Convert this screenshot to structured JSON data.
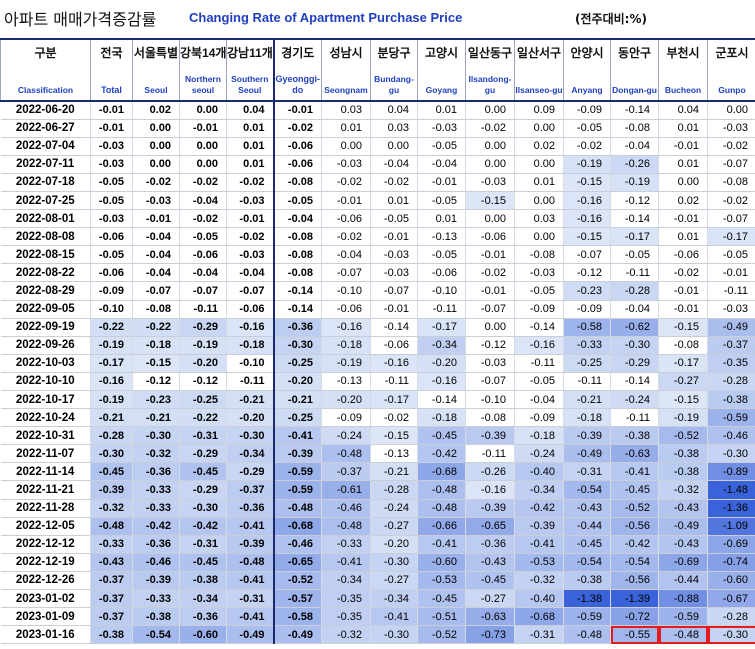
{
  "title": {
    "korean": "아파트 매매가격증감률",
    "english": "Changing Rate of Apartment Purchase Price",
    "unit": "(전주대비:%)"
  },
  "columns": [
    {
      "kr": "구분",
      "en": "Classification"
    },
    {
      "kr": "전국",
      "en": "Total"
    },
    {
      "kr": "서울특별",
      "en": "Seoul"
    },
    {
      "kr": "강북14개",
      "en": "Northern seoul"
    },
    {
      "kr": "강남11개",
      "en": "Southern Seoul"
    },
    {
      "kr": "경기도",
      "en": "Gyeonggi-do"
    },
    {
      "kr": "성남시",
      "en": "Seongnam"
    },
    {
      "kr": "분당구",
      "en": "Bundang-gu"
    },
    {
      "kr": "고양시",
      "en": "Goyang"
    },
    {
      "kr": "일산동구",
      "en": "Ilsandong-gu"
    },
    {
      "kr": "일산서구",
      "en": "Ilsanseo-gu"
    },
    {
      "kr": "안양시",
      "en": "Anyang"
    },
    {
      "kr": "동안구",
      "en": "Dongan-gu"
    },
    {
      "kr": "부천시",
      "en": "Bucheon"
    },
    {
      "kr": "군포시",
      "en": "Gunpo"
    }
  ],
  "rows": [
    {
      "date": "2022-06-20",
      "v": [
        "-0.01",
        "0.02",
        "0.00",
        "0.04",
        "-0.01",
        "0.03",
        "0.04",
        "0.01",
        "0.00",
        "0.09",
        "-0.09",
        "-0.14",
        "0.04",
        "0.00"
      ]
    },
    {
      "date": "2022-06-27",
      "v": [
        "-0.01",
        "0.00",
        "-0.01",
        "0.01",
        "-0.02",
        "0.01",
        "0.03",
        "-0.03",
        "-0.02",
        "0.00",
        "-0.05",
        "-0.08",
        "0.01",
        "-0.03"
      ]
    },
    {
      "date": "2022-07-04",
      "v": [
        "-0.03",
        "0.00",
        "0.00",
        "0.01",
        "-0.06",
        "0.00",
        "0.00",
        "-0.05",
        "0.00",
        "0.02",
        "-0.02",
        "-0.04",
        "-0.01",
        "-0.02"
      ]
    },
    {
      "date": "2022-07-11",
      "v": [
        "-0.03",
        "0.00",
        "0.00",
        "0.01",
        "-0.06",
        "-0.03",
        "-0.04",
        "-0.04",
        "0.00",
        "0.00",
        "-0.19",
        "-0.26",
        "0.01",
        "-0.07"
      ]
    },
    {
      "date": "2022-07-18",
      "v": [
        "-0.05",
        "-0.02",
        "-0.02",
        "-0.02",
        "-0.08",
        "-0.02",
        "-0.02",
        "-0.01",
        "-0.03",
        "0.01",
        "-0.15",
        "-0.19",
        "0.00",
        "-0.08"
      ]
    },
    {
      "date": "2022-07-25",
      "v": [
        "-0.05",
        "-0.03",
        "-0.04",
        "-0.03",
        "-0.05",
        "-0.01",
        "0.01",
        "-0.05",
        "-0.15",
        "0.00",
        "-0.16",
        "-0.12",
        "0.02",
        "-0.02"
      ]
    },
    {
      "date": "2022-08-01",
      "v": [
        "-0.03",
        "-0.01",
        "-0.02",
        "-0.01",
        "-0.04",
        "-0.06",
        "-0.05",
        "0.01",
        "0.00",
        "0.03",
        "-0.16",
        "-0.14",
        "-0.01",
        "-0.07"
      ]
    },
    {
      "date": "2022-08-08",
      "v": [
        "-0.06",
        "-0.04",
        "-0.05",
        "-0.02",
        "-0.08",
        "-0.02",
        "-0.01",
        "-0.13",
        "-0.06",
        "0.00",
        "-0.15",
        "-0.17",
        "0.01",
        "-0.17"
      ]
    },
    {
      "date": "2022-08-15",
      "v": [
        "-0.05",
        "-0.04",
        "-0.06",
        "-0.03",
        "-0.08",
        "-0.04",
        "-0.03",
        "-0.05",
        "-0.01",
        "-0.08",
        "-0.07",
        "-0.05",
        "-0.06",
        "-0.05"
      ]
    },
    {
      "date": "2022-08-22",
      "v": [
        "-0.06",
        "-0.04",
        "-0.04",
        "-0.04",
        "-0.08",
        "-0.07",
        "-0.03",
        "-0.06",
        "-0.02",
        "-0.03",
        "-0.12",
        "-0.11",
        "-0.02",
        "-0.01"
      ]
    },
    {
      "date": "2022-08-29",
      "v": [
        "-0.09",
        "-0.07",
        "-0.07",
        "-0.07",
        "-0.14",
        "-0.10",
        "-0.07",
        "-0.10",
        "-0.01",
        "-0.05",
        "-0.23",
        "-0.28",
        "-0.01",
        "-0.11"
      ]
    },
    {
      "date": "2022-09-05",
      "v": [
        "-0.10",
        "-0.08",
        "-0.11",
        "-0.06",
        "-0.14",
        "-0.06",
        "-0.01",
        "-0.11",
        "-0.07",
        "-0.09",
        "-0.09",
        "-0.04",
        "-0.01",
        "-0.03"
      ]
    },
    {
      "date": "2022-09-19",
      "v": [
        "-0.22",
        "-0.22",
        "-0.29",
        "-0.16",
        "-0.36",
        "-0.16",
        "-0.14",
        "-0.17",
        "0.00",
        "-0.14",
        "-0.58",
        "-0.62",
        "-0.15",
        "-0.49"
      ]
    },
    {
      "date": "2022-09-26",
      "v": [
        "-0.19",
        "-0.18",
        "-0.19",
        "-0.18",
        "-0.30",
        "-0.18",
        "-0.06",
        "-0.34",
        "-0.12",
        "-0.16",
        "-0.33",
        "-0.30",
        "-0.08",
        "-0.37"
      ]
    },
    {
      "date": "2022-10-03",
      "v": [
        "-0.17",
        "-0.15",
        "-0.20",
        "-0.10",
        "-0.25",
        "-0.19",
        "-0.16",
        "-0.20",
        "-0.03",
        "-0.11",
        "-0.25",
        "-0.29",
        "-0.17",
        "-0.35"
      ]
    },
    {
      "date": "2022-10-10",
      "v": [
        "-0.16",
        "-0.12",
        "-0.12",
        "-0.11",
        "-0.20",
        "-0.13",
        "-0.11",
        "-0.16",
        "-0.07",
        "-0.05",
        "-0.11",
        "-0.14",
        "-0.27",
        "-0.28"
      ]
    },
    {
      "date": "2022-10-17",
      "v": [
        "-0.19",
        "-0.23",
        "-0.25",
        "-0.21",
        "-0.21",
        "-0.20",
        "-0.17",
        "-0.14",
        "-0.10",
        "-0.04",
        "-0.21",
        "-0.24",
        "-0.15",
        "-0.38"
      ]
    },
    {
      "date": "2022-10-24",
      "v": [
        "-0.21",
        "-0.21",
        "-0.22",
        "-0.20",
        "-0.25",
        "-0.09",
        "-0.02",
        "-0.18",
        "-0.08",
        "-0.09",
        "-0.18",
        "-0.11",
        "-0.19",
        "-0.59"
      ]
    },
    {
      "date": "2022-10-31",
      "v": [
        "-0.28",
        "-0.30",
        "-0.31",
        "-0.30",
        "-0.41",
        "-0.24",
        "-0.15",
        "-0.45",
        "-0.39",
        "-0.18",
        "-0.39",
        "-0.38",
        "-0.52",
        "-0.46"
      ]
    },
    {
      "date": "2022-11-07",
      "v": [
        "-0.30",
        "-0.32",
        "-0.29",
        "-0.34",
        "-0.39",
        "-0.48",
        "-0.13",
        "-0.42",
        "-0.11",
        "-0.24",
        "-0.49",
        "-0.63",
        "-0.38",
        "-0.30"
      ]
    },
    {
      "date": "2022-11-14",
      "v": [
        "-0.45",
        "-0.36",
        "-0.45",
        "-0.29",
        "-0.59",
        "-0.37",
        "-0.21",
        "-0.68",
        "-0.26",
        "-0.40",
        "-0.31",
        "-0.41",
        "-0.38",
        "-0.89"
      ]
    },
    {
      "date": "2022-11-21",
      "v": [
        "-0.39",
        "-0.33",
        "-0.29",
        "-0.37",
        "-0.59",
        "-0.61",
        "-0.28",
        "-0.48",
        "-0.16",
        "-0.34",
        "-0.54",
        "-0.45",
        "-0.32",
        "-1.48"
      ]
    },
    {
      "date": "2022-11-28",
      "v": [
        "-0.32",
        "-0.33",
        "-0.30",
        "-0.36",
        "-0.48",
        "-0.46",
        "-0.24",
        "-0.48",
        "-0.39",
        "-0.42",
        "-0.43",
        "-0.52",
        "-0.43",
        "-1.36"
      ]
    },
    {
      "date": "2022-12-05",
      "v": [
        "-0.48",
        "-0.42",
        "-0.42",
        "-0.41",
        "-0.68",
        "-0.48",
        "-0.27",
        "-0.66",
        "-0.65",
        "-0.39",
        "-0.44",
        "-0.56",
        "-0.49",
        "-1.09"
      ]
    },
    {
      "date": "2022-12-12",
      "v": [
        "-0.33",
        "-0.36",
        "-0.31",
        "-0.39",
        "-0.46",
        "-0.33",
        "-0.20",
        "-0.41",
        "-0.36",
        "-0.41",
        "-0.45",
        "-0.42",
        "-0.43",
        "-0.69"
      ]
    },
    {
      "date": "2022-12-19",
      "v": [
        "-0.43",
        "-0.46",
        "-0.45",
        "-0.48",
        "-0.65",
        "-0.41",
        "-0.30",
        "-0.60",
        "-0.43",
        "-0.53",
        "-0.54",
        "-0.54",
        "-0.69",
        "-0.74"
      ]
    },
    {
      "date": "2022-12-26",
      "v": [
        "-0.37",
        "-0.39",
        "-0.38",
        "-0.41",
        "-0.52",
        "-0.34",
        "-0.27",
        "-0.53",
        "-0.45",
        "-0.32",
        "-0.38",
        "-0.56",
        "-0.44",
        "-0.60"
      ]
    },
    {
      "date": "2023-01-02",
      "v": [
        "-0.37",
        "-0.33",
        "-0.34",
        "-0.31",
        "-0.57",
        "-0.35",
        "-0.34",
        "-0.45",
        "-0.27",
        "-0.40",
        "-1.38",
        "-1.39",
        "-0.88",
        "-0.67"
      ]
    },
    {
      "date": "2023-01-09",
      "v": [
        "-0.37",
        "-0.38",
        "-0.36",
        "-0.41",
        "-0.58",
        "-0.35",
        "-0.41",
        "-0.51",
        "-0.63",
        "-0.68",
        "-0.59",
        "-0.72",
        "-0.59",
        "-0.28"
      ]
    },
    {
      "date": "2023-01-16",
      "v": [
        "-0.38",
        "-0.54",
        "-0.60",
        "-0.49",
        "-0.49",
        "-0.32",
        "-0.30",
        "-0.52",
        "-0.73",
        "-0.31",
        "-0.48",
        "-0.55",
        "-0.48",
        "-0.30"
      ]
    }
  ],
  "highlighted_cells": [
    {
      "row": "2023-01-16",
      "columns": [
        "Dongan-gu",
        "Bucheon",
        "Gunpo"
      ]
    }
  ],
  "colors": {
    "shade_light": "#dce6f7",
    "shade_dark": "#3b63d9",
    "title_en": "#1f3fbf",
    "highlight_border": "#e41a1c",
    "header_rule": "#1a2a6c"
  }
}
